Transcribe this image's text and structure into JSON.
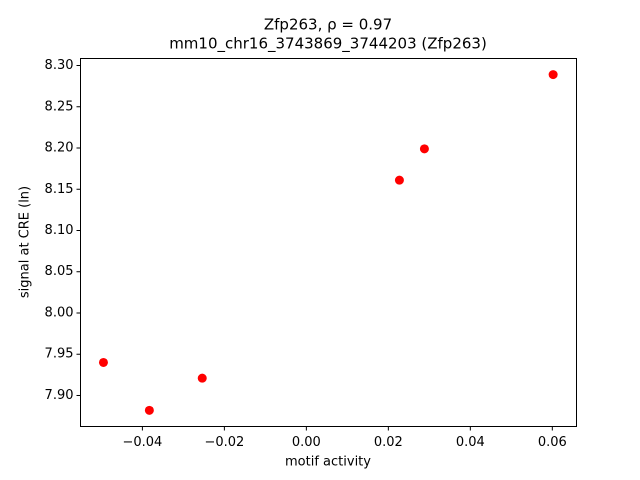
{
  "chart_data": {
    "type": "scatter",
    "title": "Zfp263, ρ = 0.97",
    "subtitle": "mm10_chr16_3743869_3744203 (Zfp263)",
    "x_label": "motif activity",
    "y_label": "signal at CRE (ln)",
    "color": "#ff0000",
    "grid": false,
    "x": [
      -0.0495,
      -0.0383,
      -0.0254,
      0.0227,
      0.0288,
      0.0602
    ],
    "values": [
      7.94,
      7.882,
      7.921,
      8.161,
      8.199,
      8.289
    ],
    "xlim": [
      -0.0551,
      0.0659
    ],
    "ylim": [
      7.8624,
      8.3085
    ],
    "xticks": [
      {
        "value": -0.04,
        "label": "−0.04"
      },
      {
        "value": -0.02,
        "label": "−0.02"
      },
      {
        "value": 0,
        "label": "0.00"
      },
      0.02,
      0.04,
      0.06
    ],
    "yticks": [
      {
        "value": 7.9,
        "label": "7.90"
      },
      7.95,
      {
        "value": 8.0,
        "label": "8.00"
      },
      8.05,
      {
        "value": 8.1,
        "label": "8.10"
      },
      8.15,
      {
        "value": 8.2,
        "label": "8.20"
      },
      8.25,
      {
        "value": 8.3,
        "label": "8.30"
      }
    ]
  }
}
